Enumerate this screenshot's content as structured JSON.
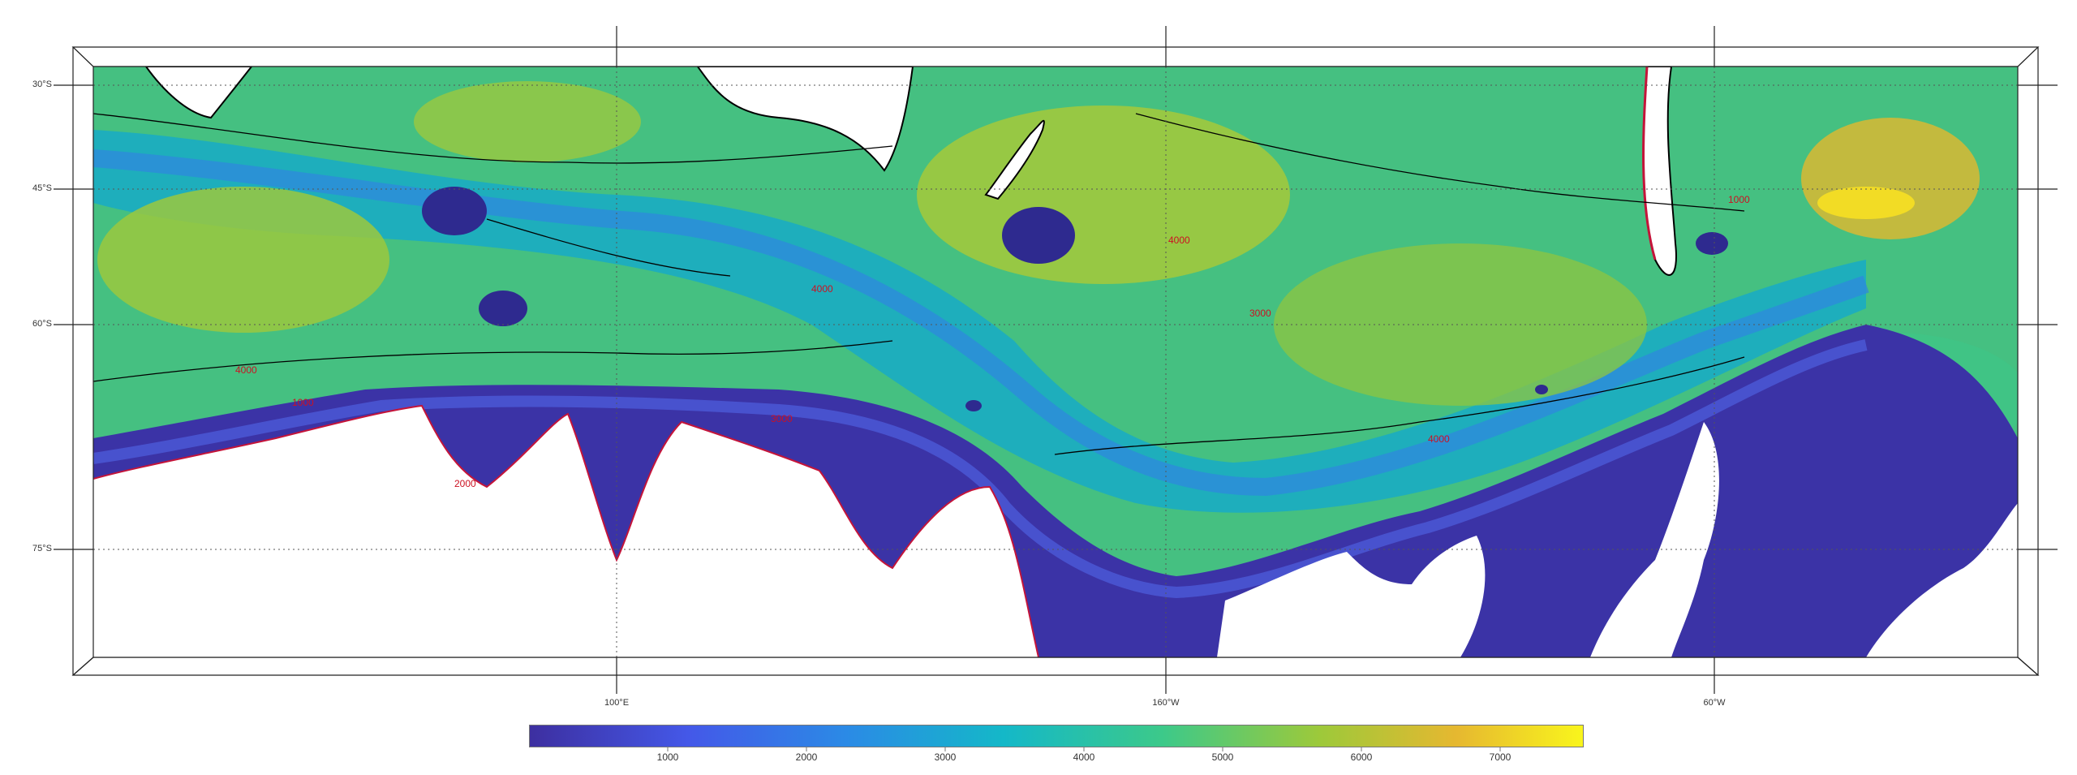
{
  "map": {
    "projection": "polar stereographic",
    "region": "Southern Ocean",
    "variable": "ocean depth",
    "contour_color": "#000000",
    "contour_label_color": "#cc1122",
    "land_color": "#ffffff",
    "lat_labels": [
      "30°S",
      "45°S",
      "60°S",
      "75°S"
    ],
    "lon_labels": [
      "100°E",
      "160°W",
      "60°W"
    ],
    "contour_labels": [
      "1000",
      "2000",
      "3000",
      "4000",
      "4000",
      "4000",
      "4000",
      "3000",
      "1000"
    ]
  },
  "colorbar": {
    "colormap": "parula",
    "colors": [
      "#3d2fa0",
      "#4458e8",
      "#2b8ae6",
      "#14b8c8",
      "#3cc98a",
      "#9dc93a",
      "#e6b830",
      "#f9f51c"
    ],
    "range": [
      0,
      7600
    ],
    "ticks": [
      "1000",
      "2000",
      "3000",
      "4000",
      "5000",
      "6000",
      "7000"
    ]
  }
}
